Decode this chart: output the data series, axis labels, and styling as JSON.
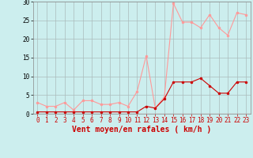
{
  "title": "",
  "xlabel": "Vent moyen/en rafales ( km/h )",
  "x_values": [
    0,
    1,
    2,
    3,
    4,
    5,
    6,
    7,
    8,
    9,
    10,
    11,
    12,
    13,
    14,
    15,
    16,
    17,
    18,
    19,
    20,
    21,
    22,
    23
  ],
  "rafales_values": [
    3.0,
    2.0,
    2.0,
    3.0,
    1.0,
    3.5,
    3.5,
    2.5,
    2.5,
    3.0,
    2.0,
    6.0,
    15.5,
    1.5,
    4.5,
    29.5,
    24.5,
    24.5,
    23.0,
    26.5,
    23.0,
    21.0,
    27.0,
    26.5
  ],
  "moyen_values": [
    0.5,
    0.5,
    0.5,
    0.5,
    0.5,
    0.5,
    0.5,
    0.5,
    0.5,
    0.5,
    0.5,
    0.5,
    2.0,
    1.5,
    4.0,
    8.5,
    8.5,
    8.5,
    9.5,
    7.5,
    5.5,
    5.5,
    8.5,
    8.5
  ],
  "rafales_color": "#FF9999",
  "moyen_color": "#CC0000",
  "bg_color": "#CCEEEE",
  "grid_color": "#AABBBB",
  "ylim": [
    0,
    30
  ],
  "yticks": [
    0,
    5,
    10,
    15,
    20,
    25,
    30
  ],
  "xlabel_fontsize": 7,
  "tick_fontsize": 5.5,
  "marker_size": 2,
  "line_width": 0.8
}
